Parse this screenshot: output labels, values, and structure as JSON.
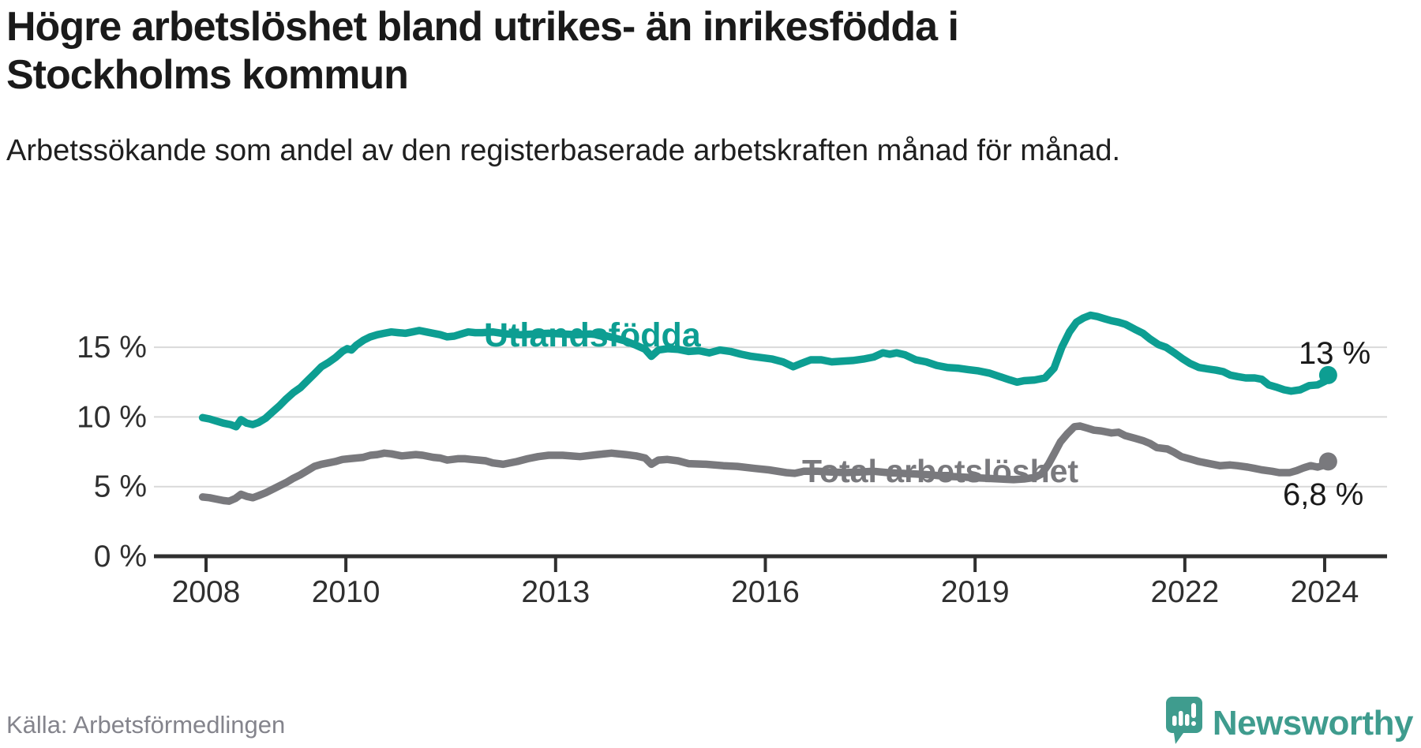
{
  "title": "Högre arbetslöshet bland utrikes- än inrikesfödda i Stockholms kommun",
  "subtitle": "Arbetssökande som andel av den registerbaserade arbetskraften månad för månad.",
  "source": "Källa: Arbetsförmedlingen",
  "brand": {
    "name": "Newsworthy",
    "logo_icon": "speech-bubble-bar-chart-icon",
    "color": "#3f9c8e"
  },
  "colors": {
    "series_foreign_born": "#0d9e92",
    "series_total": "#79797d",
    "title_text": "#1a1a1a",
    "body_text": "#1f1f1f",
    "axis": "#2f2f2f",
    "gridline": "#d9d9d9",
    "muted_text": "#84848c",
    "end_label_text": "#1a1a1a"
  },
  "chart_data": {
    "type": "line",
    "title": "Högre arbetslöshet bland utrikes- än inrikesfödda i Stockholms kommun",
    "xlabel": "",
    "ylabel": "",
    "grid": "horizontal",
    "legend_position": "inline-labels",
    "x_axis": {
      "tick_years": [
        2008,
        2010,
        2013,
        2016,
        2019,
        2022,
        2024
      ],
      "range": [
        2007.95,
        2024.9
      ]
    },
    "y_axis": {
      "tick_labels": [
        "0 %",
        "5 %",
        "10 %",
        "15 %"
      ],
      "tick_values": [
        0,
        5,
        10,
        15
      ],
      "ylim": [
        0,
        20
      ]
    },
    "series": [
      {
        "name": "Utlandsfödda",
        "color": "#0d9e92",
        "end_label": "13 %",
        "end_value": 13,
        "points": [
          [
            2007.95,
            9.95
          ],
          [
            2008.05,
            9.85
          ],
          [
            2008.15,
            9.7
          ],
          [
            2008.25,
            9.55
          ],
          [
            2008.35,
            9.45
          ],
          [
            2008.43,
            9.3
          ],
          [
            2008.5,
            9.8
          ],
          [
            2008.58,
            9.55
          ],
          [
            2008.67,
            9.45
          ],
          [
            2008.75,
            9.6
          ],
          [
            2008.85,
            9.9
          ],
          [
            2008.95,
            10.35
          ],
          [
            2009.05,
            10.8
          ],
          [
            2009.15,
            11.3
          ],
          [
            2009.25,
            11.75
          ],
          [
            2009.35,
            12.1
          ],
          [
            2009.45,
            12.6
          ],
          [
            2009.55,
            13.1
          ],
          [
            2009.65,
            13.6
          ],
          [
            2009.75,
            13.9
          ],
          [
            2009.85,
            14.25
          ],
          [
            2009.95,
            14.7
          ],
          [
            2010.02,
            14.9
          ],
          [
            2010.08,
            14.8
          ],
          [
            2010.15,
            15.15
          ],
          [
            2010.25,
            15.5
          ],
          [
            2010.35,
            15.75
          ],
          [
            2010.45,
            15.9
          ],
          [
            2010.55,
            16.0
          ],
          [
            2010.65,
            16.1
          ],
          [
            2010.75,
            16.05
          ],
          [
            2010.85,
            16.0
          ],
          [
            2010.95,
            16.1
          ],
          [
            2011.05,
            16.2
          ],
          [
            2011.15,
            16.1
          ],
          [
            2011.25,
            16.0
          ],
          [
            2011.35,
            15.9
          ],
          [
            2011.45,
            15.75
          ],
          [
            2011.55,
            15.8
          ],
          [
            2011.65,
            15.95
          ],
          [
            2011.75,
            16.1
          ],
          [
            2011.85,
            16.05
          ],
          [
            2011.95,
            16.05
          ],
          [
            2012.1,
            16.1
          ],
          [
            2012.3,
            15.95
          ],
          [
            2012.5,
            15.9
          ],
          [
            2012.7,
            15.95
          ],
          [
            2012.9,
            16.0
          ],
          [
            2013.1,
            15.95
          ],
          [
            2013.3,
            15.9
          ],
          [
            2013.5,
            15.95
          ],
          [
            2013.7,
            15.85
          ],
          [
            2013.85,
            15.65
          ],
          [
            2014.0,
            15.45
          ],
          [
            2014.15,
            15.15
          ],
          [
            2014.28,
            14.85
          ],
          [
            2014.37,
            14.35
          ],
          [
            2014.47,
            14.8
          ],
          [
            2014.6,
            14.9
          ],
          [
            2014.75,
            14.85
          ],
          [
            2014.9,
            14.7
          ],
          [
            2015.05,
            14.75
          ],
          [
            2015.2,
            14.6
          ],
          [
            2015.35,
            14.8
          ],
          [
            2015.5,
            14.7
          ],
          [
            2015.65,
            14.5
          ],
          [
            2015.8,
            14.35
          ],
          [
            2015.95,
            14.25
          ],
          [
            2016.1,
            14.15
          ],
          [
            2016.25,
            13.95
          ],
          [
            2016.4,
            13.6
          ],
          [
            2016.52,
            13.85
          ],
          [
            2016.65,
            14.1
          ],
          [
            2016.8,
            14.1
          ],
          [
            2016.95,
            13.95
          ],
          [
            2017.1,
            14.0
          ],
          [
            2017.25,
            14.05
          ],
          [
            2017.4,
            14.15
          ],
          [
            2017.55,
            14.3
          ],
          [
            2017.68,
            14.6
          ],
          [
            2017.78,
            14.5
          ],
          [
            2017.88,
            14.6
          ],
          [
            2018.0,
            14.45
          ],
          [
            2018.15,
            14.1
          ],
          [
            2018.3,
            13.95
          ],
          [
            2018.45,
            13.7
          ],
          [
            2018.6,
            13.55
          ],
          [
            2018.75,
            13.5
          ],
          [
            2018.9,
            13.4
          ],
          [
            2019.05,
            13.3
          ],
          [
            2019.2,
            13.15
          ],
          [
            2019.35,
            12.9
          ],
          [
            2019.5,
            12.65
          ],
          [
            2019.6,
            12.5
          ],
          [
            2019.7,
            12.6
          ],
          [
            2019.85,
            12.65
          ],
          [
            2020.0,
            12.8
          ],
          [
            2020.13,
            13.5
          ],
          [
            2020.24,
            15.0
          ],
          [
            2020.35,
            16.1
          ],
          [
            2020.45,
            16.8
          ],
          [
            2020.55,
            17.1
          ],
          [
            2020.65,
            17.3
          ],
          [
            2020.75,
            17.2
          ],
          [
            2020.85,
            17.05
          ],
          [
            2020.95,
            16.9
          ],
          [
            2021.05,
            16.8
          ],
          [
            2021.15,
            16.65
          ],
          [
            2021.28,
            16.3
          ],
          [
            2021.4,
            16.0
          ],
          [
            2021.5,
            15.6
          ],
          [
            2021.62,
            15.2
          ],
          [
            2021.73,
            15.0
          ],
          [
            2021.85,
            14.6
          ],
          [
            2021.96,
            14.2
          ],
          [
            2022.07,
            13.85
          ],
          [
            2022.2,
            13.55
          ],
          [
            2022.32,
            13.45
          ],
          [
            2022.45,
            13.35
          ],
          [
            2022.55,
            13.25
          ],
          [
            2022.65,
            13.0
          ],
          [
            2022.75,
            12.9
          ],
          [
            2022.87,
            12.8
          ],
          [
            2023.0,
            12.8
          ],
          [
            2023.1,
            12.7
          ],
          [
            2023.2,
            12.3
          ],
          [
            2023.3,
            12.15
          ],
          [
            2023.42,
            11.95
          ],
          [
            2023.52,
            11.85
          ],
          [
            2023.65,
            11.95
          ],
          [
            2023.78,
            12.25
          ],
          [
            2023.9,
            12.3
          ],
          [
            2024.0,
            12.55
          ],
          [
            2024.05,
            13.0
          ]
        ]
      },
      {
        "name": "Total arbetslöshet",
        "color": "#79797d",
        "end_label": "6,8 %",
        "end_value": 6.8,
        "points": [
          [
            2007.95,
            4.25
          ],
          [
            2008.05,
            4.2
          ],
          [
            2008.15,
            4.1
          ],
          [
            2008.25,
            4.0
          ],
          [
            2008.33,
            3.95
          ],
          [
            2008.42,
            4.15
          ],
          [
            2008.5,
            4.45
          ],
          [
            2008.58,
            4.3
          ],
          [
            2008.67,
            4.2
          ],
          [
            2008.75,
            4.35
          ],
          [
            2008.85,
            4.55
          ],
          [
            2008.95,
            4.8
          ],
          [
            2009.05,
            5.05
          ],
          [
            2009.15,
            5.3
          ],
          [
            2009.25,
            5.6
          ],
          [
            2009.35,
            5.85
          ],
          [
            2009.45,
            6.15
          ],
          [
            2009.55,
            6.45
          ],
          [
            2009.65,
            6.6
          ],
          [
            2009.75,
            6.7
          ],
          [
            2009.85,
            6.8
          ],
          [
            2009.95,
            6.95
          ],
          [
            2010.05,
            7.0
          ],
          [
            2010.15,
            7.05
          ],
          [
            2010.25,
            7.1
          ],
          [
            2010.35,
            7.25
          ],
          [
            2010.45,
            7.3
          ],
          [
            2010.55,
            7.4
          ],
          [
            2010.65,
            7.35
          ],
          [
            2010.8,
            7.2
          ],
          [
            2010.9,
            7.25
          ],
          [
            2011.0,
            7.3
          ],
          [
            2011.1,
            7.25
          ],
          [
            2011.25,
            7.1
          ],
          [
            2011.35,
            7.05
          ],
          [
            2011.45,
            6.9
          ],
          [
            2011.6,
            7.0
          ],
          [
            2011.7,
            7.0
          ],
          [
            2011.8,
            6.95
          ],
          [
            2011.9,
            6.9
          ],
          [
            2012.0,
            6.85
          ],
          [
            2012.1,
            6.7
          ],
          [
            2012.25,
            6.6
          ],
          [
            2012.45,
            6.8
          ],
          [
            2012.6,
            7.0
          ],
          [
            2012.75,
            7.15
          ],
          [
            2012.9,
            7.25
          ],
          [
            2013.1,
            7.25
          ],
          [
            2013.35,
            7.15
          ],
          [
            2013.6,
            7.3
          ],
          [
            2013.8,
            7.4
          ],
          [
            2014.0,
            7.3
          ],
          [
            2014.15,
            7.2
          ],
          [
            2014.28,
            7.05
          ],
          [
            2014.37,
            6.6
          ],
          [
            2014.47,
            6.9
          ],
          [
            2014.6,
            6.95
          ],
          [
            2014.75,
            6.85
          ],
          [
            2014.9,
            6.65
          ],
          [
            2015.15,
            6.6
          ],
          [
            2015.4,
            6.5
          ],
          [
            2015.6,
            6.45
          ],
          [
            2015.85,
            6.3
          ],
          [
            2016.05,
            6.2
          ],
          [
            2016.3,
            6.0
          ],
          [
            2016.42,
            5.95
          ],
          [
            2016.55,
            6.1
          ],
          [
            2016.75,
            6.1
          ],
          [
            2016.95,
            6.05
          ],
          [
            2017.15,
            6.0
          ],
          [
            2017.35,
            6.05
          ],
          [
            2017.55,
            6.1
          ],
          [
            2017.75,
            6.0
          ],
          [
            2017.95,
            5.95
          ],
          [
            2018.15,
            5.9
          ],
          [
            2018.35,
            5.85
          ],
          [
            2018.55,
            5.75
          ],
          [
            2018.75,
            5.7
          ],
          [
            2018.95,
            5.65
          ],
          [
            2019.15,
            5.6
          ],
          [
            2019.35,
            5.55
          ],
          [
            2019.55,
            5.5
          ],
          [
            2019.7,
            5.55
          ],
          [
            2019.85,
            5.65
          ],
          [
            2019.95,
            5.9
          ],
          [
            2020.05,
            6.6
          ],
          [
            2020.13,
            7.35
          ],
          [
            2020.22,
            8.2
          ],
          [
            2020.32,
            8.8
          ],
          [
            2020.42,
            9.3
          ],
          [
            2020.5,
            9.35
          ],
          [
            2020.6,
            9.2
          ],
          [
            2020.7,
            9.05
          ],
          [
            2020.8,
            9.0
          ],
          [
            2020.95,
            8.85
          ],
          [
            2021.05,
            8.9
          ],
          [
            2021.15,
            8.65
          ],
          [
            2021.3,
            8.45
          ],
          [
            2021.4,
            8.3
          ],
          [
            2021.5,
            8.1
          ],
          [
            2021.6,
            7.8
          ],
          [
            2021.75,
            7.7
          ],
          [
            2021.85,
            7.45
          ],
          [
            2021.95,
            7.15
          ],
          [
            2022.1,
            6.95
          ],
          [
            2022.2,
            6.8
          ],
          [
            2022.3,
            6.7
          ],
          [
            2022.4,
            6.6
          ],
          [
            2022.5,
            6.5
          ],
          [
            2022.65,
            6.55
          ],
          [
            2022.75,
            6.5
          ],
          [
            2022.9,
            6.4
          ],
          [
            2023.0,
            6.3
          ],
          [
            2023.1,
            6.2
          ],
          [
            2023.25,
            6.1
          ],
          [
            2023.35,
            6.0
          ],
          [
            2023.5,
            6.0
          ],
          [
            2023.6,
            6.15
          ],
          [
            2023.7,
            6.35
          ],
          [
            2023.8,
            6.5
          ],
          [
            2023.9,
            6.4
          ],
          [
            2024.0,
            6.55
          ],
          [
            2024.05,
            6.8
          ]
        ]
      }
    ]
  }
}
